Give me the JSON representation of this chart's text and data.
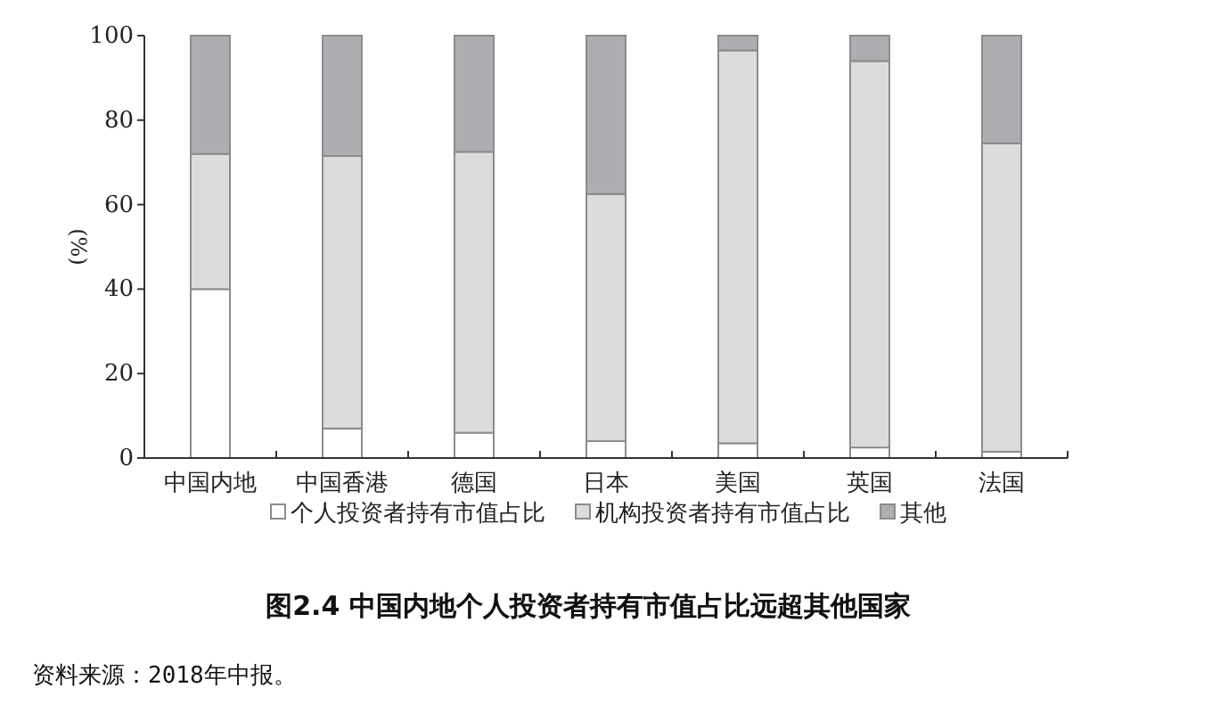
{
  "chart_data": {
    "type": "bar",
    "stacked": true,
    "title": "图2.4 中国内地个人投资者持有市值占比远超其他国家",
    "ylabel": "(%)",
    "categories": [
      "中国内地",
      "中国香港",
      "德国",
      "日本",
      "美国",
      "英国",
      "法国"
    ],
    "series": [
      {
        "name": "个人投资者持有市值占比",
        "color": "#ffffff",
        "values": [
          40,
          7,
          6,
          4,
          3.5,
          2.5,
          1.5
        ]
      },
      {
        "name": "机构投资者持有市值占比",
        "color": "#dcdcdc",
        "values": [
          32,
          64.5,
          66.5,
          58.5,
          93,
          91.5,
          73
        ]
      },
      {
        "name": "其他",
        "color": "#aeaeb2",
        "values": [
          28,
          28.5,
          27.5,
          37.5,
          3.5,
          6,
          25.5
        ]
      }
    ],
    "ylim": [
      0,
      100
    ],
    "yticks": [
      0,
      20,
      40,
      60,
      80,
      100
    ],
    "grid": false,
    "legend": "bottom",
    "annotations": [
      "资料来源：2018年中报。"
    ]
  }
}
